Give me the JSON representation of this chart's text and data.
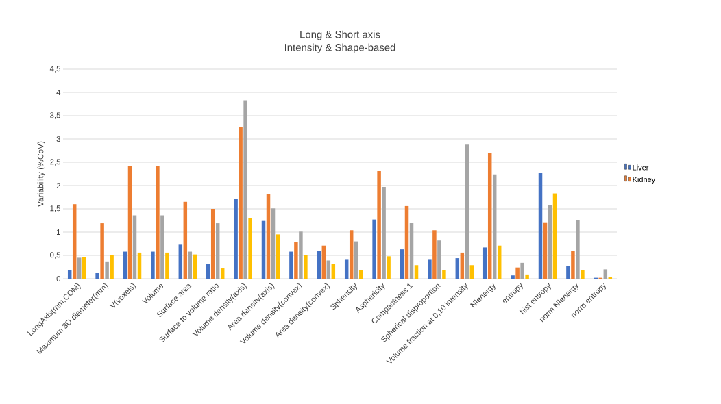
{
  "chart_data": {
    "type": "bar",
    "title": "Long & Short axis",
    "subtitle": "Intensity & Shape-based",
    "ylabel": "Variability (%CoV)",
    "categories": [
      "LongAxis(mm,COM)",
      "Maximum 3D diameter(mm)",
      "V(voxels)",
      "Volume",
      "Surface area",
      "Surface to volume ratio",
      "Volume density(axis)",
      "Area density(axis)",
      "Volume density(convex)",
      "Area density(convex)",
      "Sphericity",
      "Asphericity",
      "Compactness 1",
      "Spherical disproportion",
      "Volume fraction at 0,10 intensity",
      "NIenergy",
      "entropy",
      "hist entropy",
      "norm NIenergy",
      "norm entropy"
    ],
    "series": [
      {
        "name": "Liver",
        "color": "#4472c4",
        "values": [
          0.19,
          0.13,
          0.58,
          0.58,
          0.73,
          0.32,
          1.72,
          1.24,
          0.58,
          0.6,
          0.42,
          1.27,
          0.63,
          0.42,
          0.44,
          0.67,
          0.07,
          2.27,
          0.27,
          0.02
        ]
      },
      {
        "name": "Kidney",
        "color": "#ed7d31",
        "values": [
          1.6,
          1.19,
          2.42,
          2.42,
          1.65,
          1.5,
          3.25,
          1.81,
          0.79,
          0.71,
          1.04,
          2.31,
          1.56,
          1.04,
          0.56,
          2.7,
          0.24,
          1.21,
          0.6,
          0.02
        ]
      },
      {
        "color": "#a5a5a5",
        "values": [
          0.45,
          0.37,
          1.36,
          1.36,
          0.58,
          1.19,
          3.83,
          1.51,
          1.01,
          0.39,
          0.8,
          1.97,
          1.2,
          0.82,
          2.88,
          2.24,
          0.34,
          1.58,
          1.25,
          0.2
        ]
      },
      {
        "color": "#ffc000",
        "values": [
          0.47,
          0.51,
          0.56,
          0.56,
          0.52,
          0.22,
          1.3,
          0.95,
          0.5,
          0.32,
          0.19,
          0.48,
          0.29,
          0.19,
          0.29,
          0.71,
          0.09,
          1.83,
          0.19,
          0.03
        ]
      }
    ],
    "ylim": [
      0,
      4.5
    ],
    "yticks": [
      0,
      {
        "value": 0.5,
        "label": "0,5"
      },
      1,
      {
        "value": 1.5,
        "label": "1,5"
      },
      2,
      {
        "value": 2.5,
        "label": "2,5"
      },
      3,
      {
        "value": 3.5,
        "label": "3,5"
      },
      4,
      {
        "value": 4.5,
        "label": "4,5"
      }
    ],
    "grid": "y",
    "legend": "right"
  }
}
